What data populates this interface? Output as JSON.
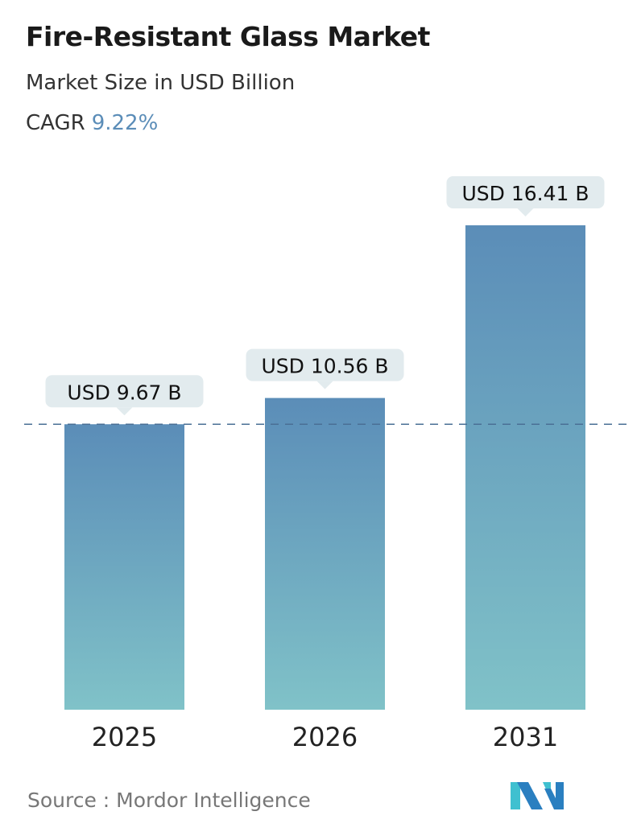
{
  "title": "Fire-Resistant Glass Market",
  "subtitle": "Market Size in USD Billion",
  "cagr_label": "CAGR",
  "cagr_value": "9.22%",
  "source": "Source :  Mordor Intelligence",
  "logo_text": "Mordor Intelligence",
  "colors": {
    "bar_top": "#5b8db8",
    "bar_bottom": "#80c2c8",
    "callout": "#e2ebee",
    "accent": "#5b8db8"
  },
  "chart_data": {
    "type": "bar",
    "categories": [
      "2025",
      "2026",
      "2031"
    ],
    "values": [
      9.67,
      10.56,
      16.41
    ],
    "data_labels": [
      "USD 9.67 B",
      "USD 10.56 B",
      "USD 16.41 B"
    ],
    "title": "Fire-Resistant Glass Market",
    "ylabel": "Market Size in USD Billion",
    "ylim": [
      0,
      16.41
    ],
    "grid": false,
    "reference_line": {
      "value": 9.67,
      "style": "dashed"
    }
  }
}
